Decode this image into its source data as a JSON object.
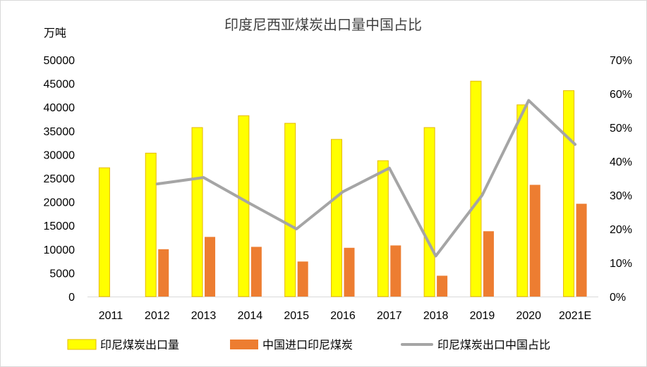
{
  "chart_data": {
    "type": "bar",
    "title": "印度尼西亚煤炭出口量中国占比",
    "ylabel": "万吨",
    "categories": [
      "2011",
      "2012",
      "2013",
      "2014",
      "2015",
      "2016",
      "2017",
      "2018",
      "2019",
      "2020",
      "2021E"
    ],
    "series": [
      {
        "name": "印尼煤炭出口量",
        "type": "bar",
        "axis": "left",
        "color": "#FFFF00",
        "edge_color": "#E6B800",
        "values": [
          27200,
          30300,
          35700,
          38200,
          36600,
          33200,
          28700,
          35700,
          45500,
          40500,
          43500
        ]
      },
      {
        "name": "中国进口印尼煤炭",
        "type": "bar",
        "axis": "left",
        "color": "#ED7D31",
        "values": [
          null,
          10000,
          12600,
          10500,
          7400,
          10300,
          10800,
          4400,
          13800,
          23600,
          19600
        ]
      },
      {
        "name": "印尼煤炭出口中国占比",
        "type": "line",
        "axis": "right",
        "color": "#A5A5A5",
        "values": [
          null,
          0.333,
          0.352,
          0.275,
          0.2,
          0.31,
          0.38,
          0.12,
          0.3,
          0.58,
          0.45
        ]
      }
    ],
    "ylim": [
      0,
      50000
    ],
    "yticks": [
      "50000",
      "45000",
      "40000",
      "35000",
      "30000",
      "25000",
      "20000",
      "15000",
      "10000",
      "5000",
      "0"
    ],
    "y2lim": [
      0,
      0.7
    ],
    "y2ticks": [
      "70%",
      "60%",
      "50%",
      "40%",
      "30%",
      "20%",
      "10%",
      "0%"
    ],
    "legend_position": "bottom",
    "grid": false
  }
}
